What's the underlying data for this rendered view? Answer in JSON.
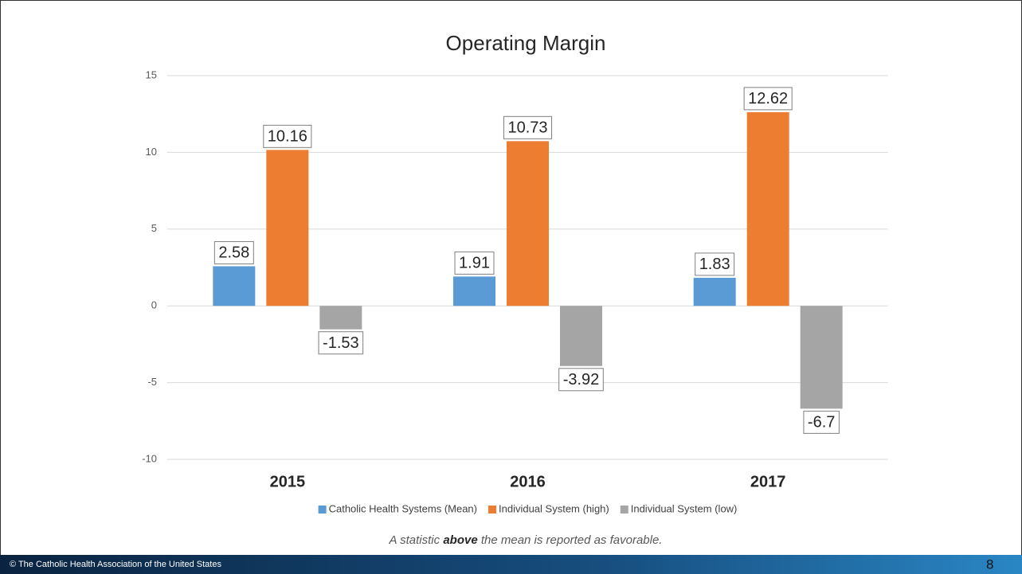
{
  "chart_data": {
    "type": "bar",
    "title": "Operating Margin",
    "categories": [
      "2015",
      "2016",
      "2017"
    ],
    "series": [
      {
        "name": "Catholic Health Systems (Mean)",
        "color": "#5b9bd5",
        "values": [
          2.58,
          1.91,
          1.83
        ]
      },
      {
        "name": "Individual System (high)",
        "color": "#ed7d31",
        "values": [
          10.16,
          10.73,
          12.62
        ]
      },
      {
        "name": "Individual System (low)",
        "color": "#a5a5a5",
        "values": [
          -1.53,
          -3.92,
          -6.7
        ]
      }
    ],
    "ylim": [
      -10,
      15
    ],
    "yticks": [
      -10,
      -5,
      0,
      5,
      10,
      15
    ],
    "grid": true,
    "legend": "bottom"
  },
  "footnote": [
    "A statistic ",
    "above",
    " the mean is reported as favorable."
  ],
  "footer": {
    "text": "© The Catholic Health Association of the United States",
    "page_number": "8"
  }
}
